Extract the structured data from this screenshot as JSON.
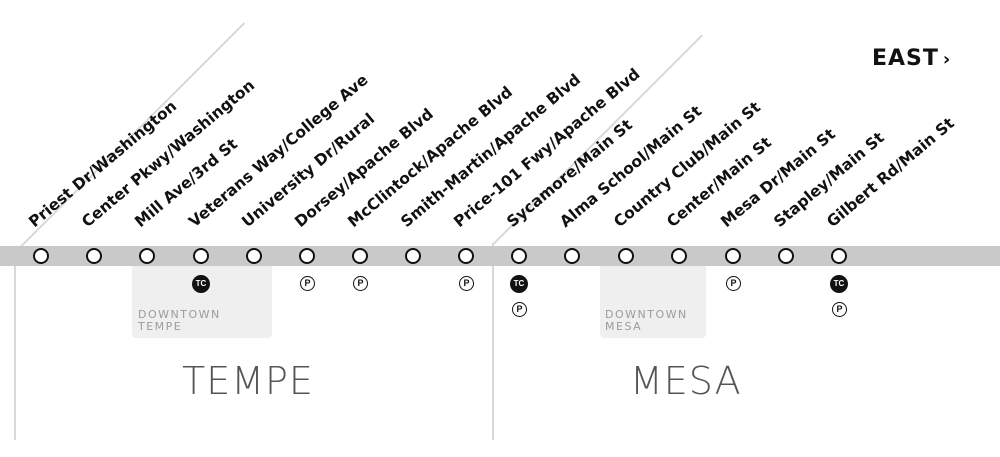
{
  "direction": {
    "label": "EAST",
    "arrow_icon": "chevron-right-icon"
  },
  "stations": [
    {
      "name": "Priest Dr/Washington",
      "transit_center": false,
      "park_and_ride": false
    },
    {
      "name": "Center Pkwy/Washington",
      "transit_center": false,
      "park_and_ride": false
    },
    {
      "name": "Mill Ave/3rd St",
      "transit_center": false,
      "park_and_ride": false
    },
    {
      "name": "Veterans Way/College Ave",
      "transit_center": true,
      "park_and_ride": false
    },
    {
      "name": "University Dr/Rural",
      "transit_center": false,
      "park_and_ride": false
    },
    {
      "name": "Dorsey/Apache Blvd",
      "transit_center": false,
      "park_and_ride": true
    },
    {
      "name": "McClintock/Apache Blvd",
      "transit_center": false,
      "park_and_ride": true
    },
    {
      "name": "Smith-Martin/Apache Blvd",
      "transit_center": false,
      "park_and_ride": false
    },
    {
      "name": "Price-101 Fwy/Apache Blvd",
      "transit_center": false,
      "park_and_ride": true
    },
    {
      "name": "Sycamore/Main St",
      "transit_center": true,
      "park_and_ride": true
    },
    {
      "name": "Alma School/Main St",
      "transit_center": false,
      "park_and_ride": false
    },
    {
      "name": "Country Club/Main St",
      "transit_center": false,
      "park_and_ride": false
    },
    {
      "name": "Center/Main St",
      "transit_center": false,
      "park_and_ride": false
    },
    {
      "name": "Mesa Dr/Main St",
      "transit_center": false,
      "park_and_ride": true
    },
    {
      "name": "Stapley/Main St",
      "transit_center": false,
      "park_and_ride": false
    },
    {
      "name": "Gilbert Rd/Main St",
      "transit_center": true,
      "park_and_ride": true
    }
  ],
  "badges": {
    "transit_center": "TC",
    "park_and_ride": "P"
  },
  "zones": [
    {
      "line1": "DOWNTOWN",
      "line2": "TEMPE"
    },
    {
      "line1": "DOWNTOWN",
      "line2": "MESA"
    }
  ],
  "cities": [
    "TEMPE",
    "MESA"
  ],
  "colors": {
    "track": "#c9c9c9",
    "zone": "#efefef",
    "ink": "#111111",
    "divider": "#d9d9d9"
  }
}
